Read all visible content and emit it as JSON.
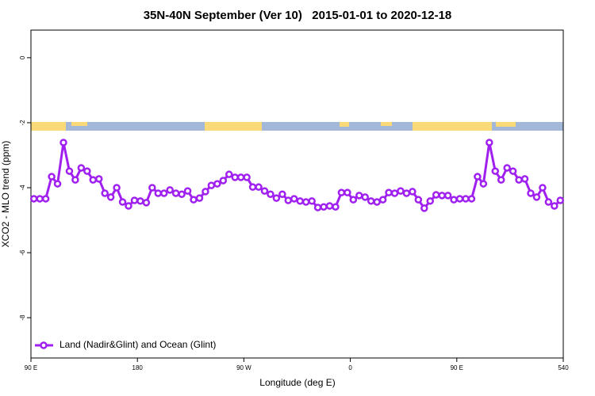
{
  "chart_data": {
    "type": "line",
    "title": "35N-40N September (Ver 10)   2015-01-01 to 2020-12-18",
    "x_label": "Longitude (deg E)",
    "y_label": "XCO2 - MLO trend (ppm)",
    "xlim": [
      90,
      540
    ],
    "ylim": [
      -9.24,
      0.85
    ],
    "xticks": [
      {
        "value": 90,
        "label": "90 E"
      },
      180,
      {
        "value": 270,
        "label": "90 W"
      },
      {
        "value": 360,
        "label": "0"
      },
      {
        "value": 450,
        "label": "90 E"
      },
      540
    ],
    "yticks": [
      0,
      -2,
      -4,
      -6,
      -8
    ],
    "legend": "bottom-left",
    "x": [
      92.5,
      97.5,
      102.5,
      107.5,
      112.5,
      117.5,
      122.5,
      127.5,
      132.5,
      137.5,
      142.5,
      147.5,
      152.5,
      157.5,
      162.5,
      167.5,
      172.5,
      177.5,
      182.5,
      187.5,
      192.5,
      197.5,
      202.5,
      207.5,
      212.5,
      217.5,
      222.5,
      227.5,
      232.5,
      237.5,
      242.5,
      247.5,
      252.5,
      257.5,
      262.5,
      267.5,
      272.5,
      277.5,
      282.5,
      287.5,
      292.5,
      297.5,
      302.5,
      307.5,
      312.5,
      317.5,
      322.5,
      327.5,
      332.5,
      337.5,
      342.5,
      347.5,
      352.5,
      357.5,
      362.5,
      367.5,
      372.5,
      377.5,
      382.5,
      387.5,
      392.5,
      397.5,
      402.5,
      407.5,
      412.5,
      417.5,
      422.5,
      427.5,
      432.5,
      437.5,
      442.5,
      447.5,
      452.5,
      457.5,
      462.5,
      467.5,
      472.5,
      477.5,
      482.5,
      487.5,
      492.5,
      497.5,
      502.5,
      507.5,
      512.5,
      517.5,
      522.5,
      527.5,
      532.5,
      537.5
    ],
    "series": [
      {
        "name": "Land (Nadir&Glint) and Ocean (Glint)",
        "color": "#a020f0",
        "values": [
          -4.34,
          -4.34,
          -4.34,
          -3.66,
          -3.88,
          -2.61,
          -3.49,
          -3.76,
          -3.39,
          -3.49,
          -3.76,
          -3.73,
          -4.17,
          -4.29,
          -4.0,
          -4.44,
          -4.56,
          -4.39,
          -4.41,
          -4.46,
          -4.0,
          -4.17,
          -4.17,
          -4.07,
          -4.17,
          -4.2,
          -4.1,
          -4.37,
          -4.32,
          -4.12,
          -3.93,
          -3.88,
          -3.78,
          -3.59,
          -3.68,
          -3.68,
          -3.68,
          -3.98,
          -3.98,
          -4.1,
          -4.2,
          -4.32,
          -4.2,
          -4.39,
          -4.34,
          -4.41,
          -4.44,
          -4.41,
          -4.61,
          -4.59,
          -4.56,
          -4.59,
          -4.15,
          -4.15,
          -4.37,
          -4.24,
          -4.29,
          -4.41,
          -4.44,
          -4.37,
          -4.15,
          -4.17,
          -4.1,
          -4.17,
          -4.12,
          -4.37,
          -4.63,
          -4.41,
          -4.22,
          -4.24,
          -4.24,
          -4.37,
          -4.34,
          -4.34,
          -4.34,
          -3.66,
          -3.88,
          -2.61,
          -3.49,
          -3.76,
          -3.39,
          -3.49,
          -3.76,
          -3.73,
          -4.17,
          -4.29,
          -4.0,
          -4.44,
          -4.56,
          -4.39
        ]
      }
    ]
  }
}
